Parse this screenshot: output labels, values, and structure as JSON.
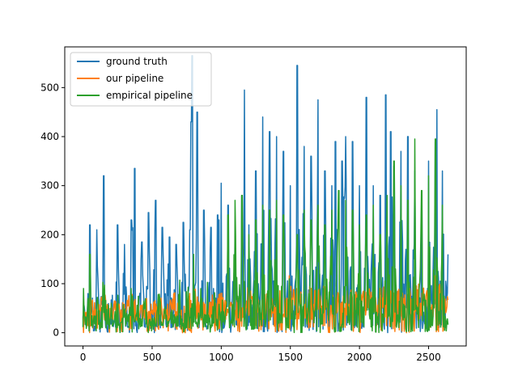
{
  "chart_data": {
    "type": "line",
    "title": "",
    "xlabel": "",
    "ylabel": "",
    "xlim": [
      -132,
      2772
    ],
    "ylim": [
      -27,
      583
    ],
    "xticks": [
      0,
      500,
      1000,
      1500,
      2000,
      2500
    ],
    "yticks": [
      0,
      100,
      200,
      300,
      400,
      500
    ],
    "grid": false,
    "legend_position": "top-left",
    "n_points": 2640,
    "series": [
      {
        "name": "ground truth",
        "color": "#1f77b4",
        "x": [
          0,
          25,
          50,
          75,
          100,
          125,
          150,
          155,
          175,
          200,
          225,
          250,
          275,
          300,
          325,
          350,
          375,
          378,
          400,
          425,
          450,
          475,
          500,
          525,
          550,
          575,
          600,
          625,
          650,
          675,
          700,
          725,
          750,
          775,
          783,
          790,
          800,
          825,
          840,
          850,
          875,
          900,
          925,
          950,
          975,
          1000,
          1025,
          1050,
          1075,
          1100,
          1125,
          1150,
          1168,
          1175,
          1200,
          1225,
          1250,
          1275,
          1300,
          1325,
          1350,
          1375,
          1400,
          1425,
          1450,
          1475,
          1500,
          1525,
          1550,
          1575,
          1600,
          1625,
          1650,
          1675,
          1700,
          1725,
          1750,
          1775,
          1800,
          1825,
          1850,
          1875,
          1900,
          1925,
          1950,
          1975,
          2000,
          2025,
          2050,
          2075,
          2100,
          2125,
          2150,
          2175,
          2190,
          2200,
          2225,
          2250,
          2275,
          2300,
          2325,
          2350,
          2375,
          2400,
          2425,
          2450,
          2475,
          2500,
          2525,
          2550,
          2560,
          2575,
          2600,
          2625,
          2640
        ],
        "values": [
          95,
          20,
          220,
          40,
          210,
          30,
          320,
          5,
          60,
          130,
          25,
          220,
          40,
          180,
          10,
          230,
          335,
          20,
          50,
          185,
          10,
          245,
          50,
          270,
          20,
          215,
          70,
          195,
          30,
          180,
          10,
          225,
          60,
          210,
          430,
          565,
          40,
          450,
          20,
          80,
          250,
          30,
          215,
          60,
          240,
          305,
          10,
          260,
          70,
          215,
          20,
          280,
          495,
          60,
          220,
          30,
          330,
          80,
          440,
          30,
          410,
          60,
          400,
          20,
          370,
          70,
          300,
          20,
          545,
          60,
          380,
          30,
          360,
          50,
          475,
          70,
          330,
          40,
          300,
          390,
          30,
          350,
          400,
          60,
          390,
          70,
          300,
          40,
          480,
          60,
          300,
          40,
          280,
          50,
          485,
          40,
          410,
          340,
          60,
          370,
          70,
          400,
          50,
          330,
          70,
          250,
          40,
          350,
          60,
          390,
          455,
          60,
          330,
          100,
          160
        ]
      },
      {
        "name": "our pipeline",
        "color": "#ff7f0e",
        "x": [
          0,
          50,
          100,
          150,
          200,
          250,
          300,
          350,
          400,
          450,
          500,
          550,
          600,
          650,
          700,
          750,
          800,
          850,
          900,
          950,
          1000,
          1050,
          1100,
          1150,
          1200,
          1250,
          1300,
          1350,
          1400,
          1450,
          1500,
          1550,
          1600,
          1650,
          1700,
          1750,
          1800,
          1850,
          1900,
          1950,
          2000,
          2050,
          2100,
          2150,
          2200,
          2250,
          2300,
          2350,
          2400,
          2450,
          2500,
          2550,
          2600,
          2640
        ],
        "values": [
          20,
          60,
          40,
          80,
          30,
          70,
          50,
          90,
          30,
          60,
          40,
          70,
          30,
          80,
          50,
          70,
          90,
          60,
          40,
          80,
          100,
          50,
          70,
          60,
          90,
          50,
          80,
          60,
          100,
          50,
          130,
          90,
          60,
          100,
          80,
          120,
          60,
          90,
          70,
          110,
          60,
          100,
          80,
          90,
          120,
          70,
          100,
          80,
          110,
          90,
          100,
          120,
          90,
          80
        ]
      },
      {
        "name": "empirical pipeline",
        "color": "#2ca02c",
        "x": [
          0,
          25,
          50,
          75,
          100,
          125,
          150,
          175,
          200,
          225,
          250,
          275,
          300,
          325,
          350,
          375,
          400,
          425,
          450,
          475,
          500,
          525,
          550,
          575,
          600,
          625,
          650,
          675,
          700,
          725,
          750,
          775,
          800,
          825,
          850,
          875,
          900,
          925,
          950,
          975,
          1000,
          1025,
          1050,
          1075,
          1100,
          1125,
          1150,
          1175,
          1200,
          1225,
          1250,
          1275,
          1300,
          1325,
          1350,
          1375,
          1400,
          1425,
          1450,
          1475,
          1500,
          1525,
          1550,
          1575,
          1600,
          1625,
          1650,
          1675,
          1700,
          1725,
          1750,
          1775,
          1800,
          1825,
          1850,
          1875,
          1900,
          1925,
          1950,
          1975,
          2000,
          2025,
          2050,
          2075,
          2100,
          2125,
          2150,
          2175,
          2200,
          2225,
          2250,
          2275,
          2300,
          2325,
          2350,
          2375,
          2400,
          2425,
          2450,
          2475,
          2500,
          2525,
          2550,
          2575,
          2600,
          2625,
          2640
        ],
        "values": [
          135,
          10,
          160,
          20,
          130,
          5,
          150,
          30,
          100,
          10,
          110,
          5,
          90,
          20,
          120,
          10,
          80,
          5,
          100,
          10,
          60,
          5,
          110,
          10,
          70,
          5,
          80,
          10,
          120,
          5,
          150,
          20,
          160,
          10,
          130,
          20,
          110,
          10,
          90,
          20,
          150,
          10,
          240,
          20,
          270,
          30,
          280,
          40,
          200,
          20,
          230,
          30,
          260,
          20,
          250,
          40,
          270,
          20,
          240,
          30,
          150,
          20,
          200,
          40,
          250,
          30,
          230,
          40,
          260,
          30,
          220,
          40,
          250,
          30,
          290,
          40,
          270,
          30,
          250,
          40,
          220,
          30,
          240,
          40,
          260,
          30,
          200,
          40,
          280,
          30,
          350,
          40,
          300,
          30,
          270,
          40,
          395,
          30,
          290,
          40,
          320,
          30,
          395,
          40,
          260,
          30,
          150
        ]
      }
    ]
  }
}
